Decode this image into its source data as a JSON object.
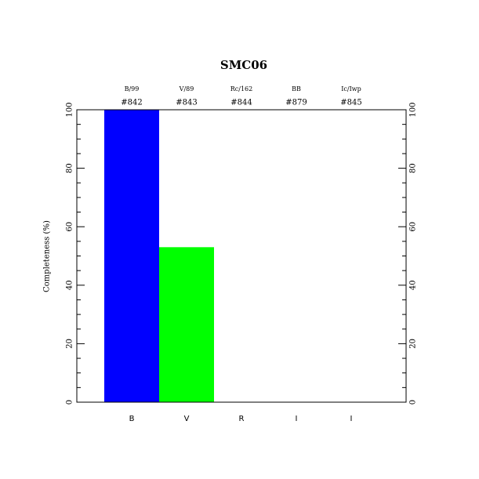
{
  "chart_data": {
    "type": "bar",
    "title": "SMC06",
    "categories": [
      "B",
      "V",
      "R",
      "I",
      "I"
    ],
    "filters": [
      "B/99",
      "V/89",
      "Rc/162",
      "BB",
      "Ic/Iwp"
    ],
    "ids": [
      "#842",
      "#843",
      "#844",
      "#879",
      "#845"
    ],
    "values": [
      100,
      53,
      0,
      0,
      0
    ],
    "colors": [
      "#0000ff",
      "#00ff00",
      null,
      null,
      null
    ],
    "ylabel": "Completeness (%)",
    "ylim": [
      0,
      100
    ],
    "yticks": [
      0,
      20,
      40,
      60,
      80,
      100
    ],
    "yminorticks": [
      5,
      10,
      15,
      25,
      30,
      35,
      45,
      50,
      55,
      65,
      70,
      75,
      85,
      90,
      95
    ],
    "grid": false
  }
}
